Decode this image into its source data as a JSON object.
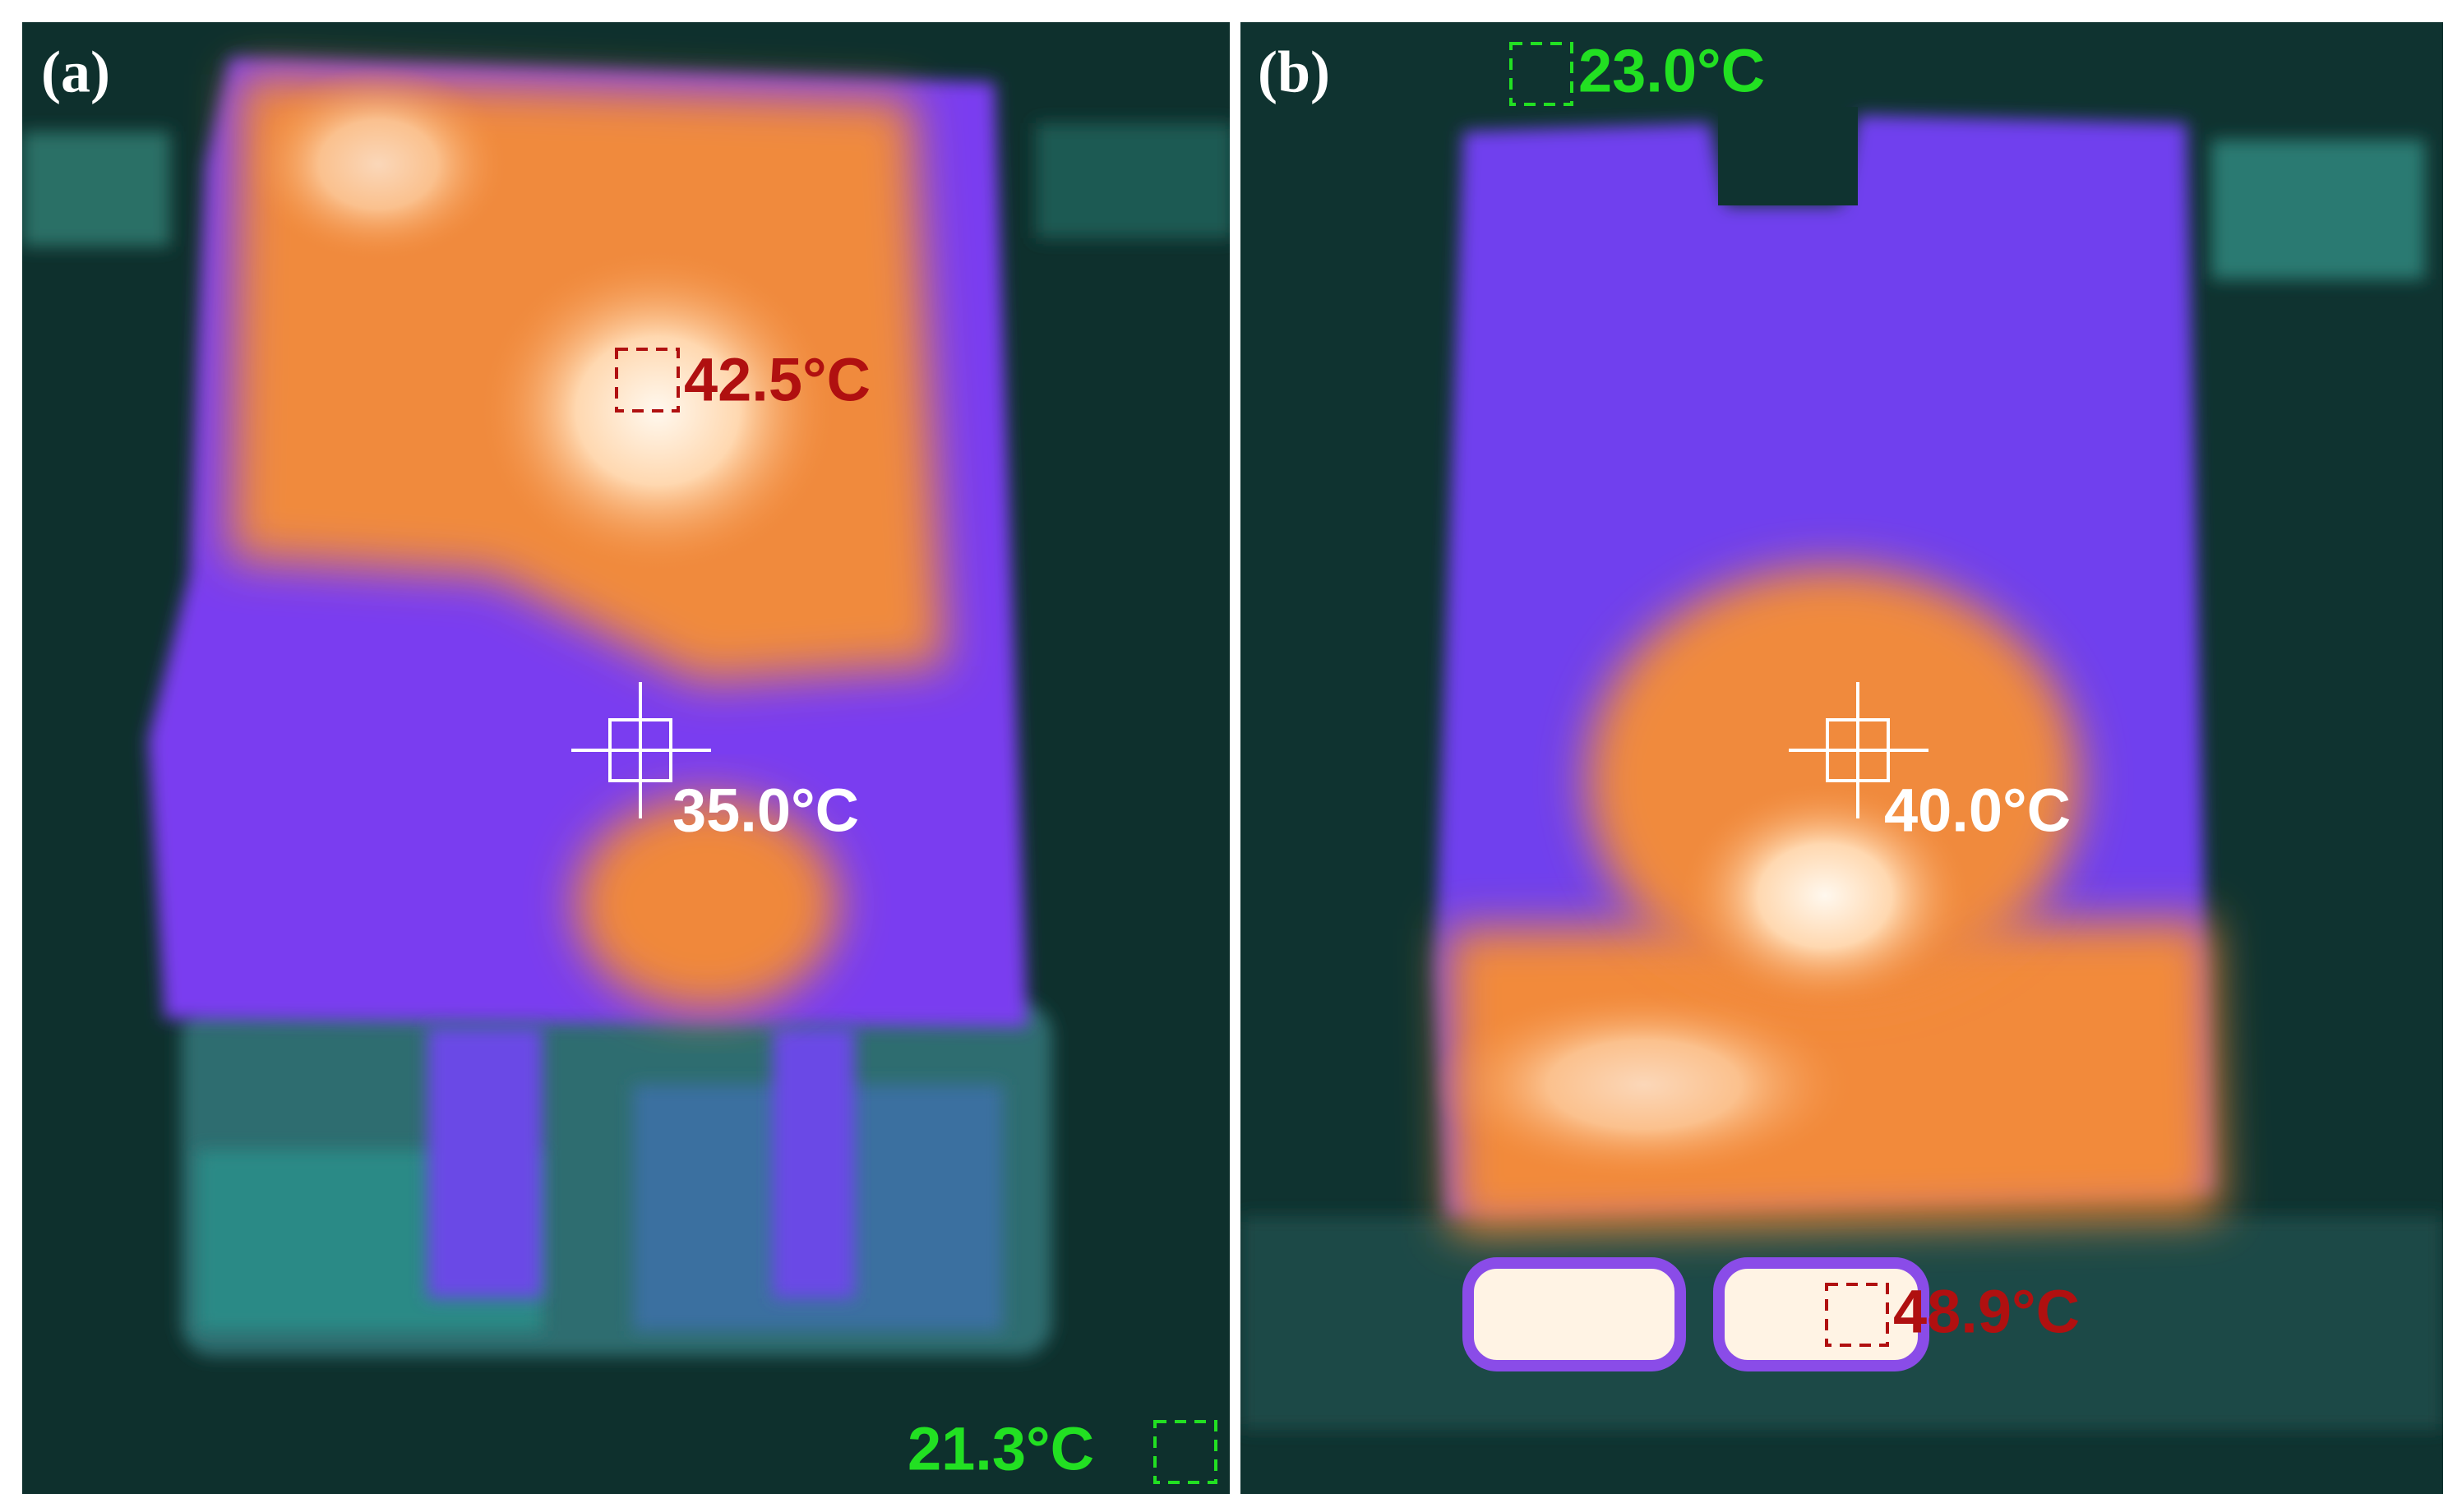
{
  "panels": [
    {
      "label": "(a)",
      "readings": [
        {
          "text": "42.5°C"
        },
        {
          "text": "35.0°C"
        },
        {
          "text": "21.3°C"
        }
      ]
    },
    {
      "label": "(b)",
      "readings": [
        {
          "text": "23.0°C"
        },
        {
          "text": "40.0°C"
        },
        {
          "text": "48.9°C"
        }
      ]
    }
  ]
}
